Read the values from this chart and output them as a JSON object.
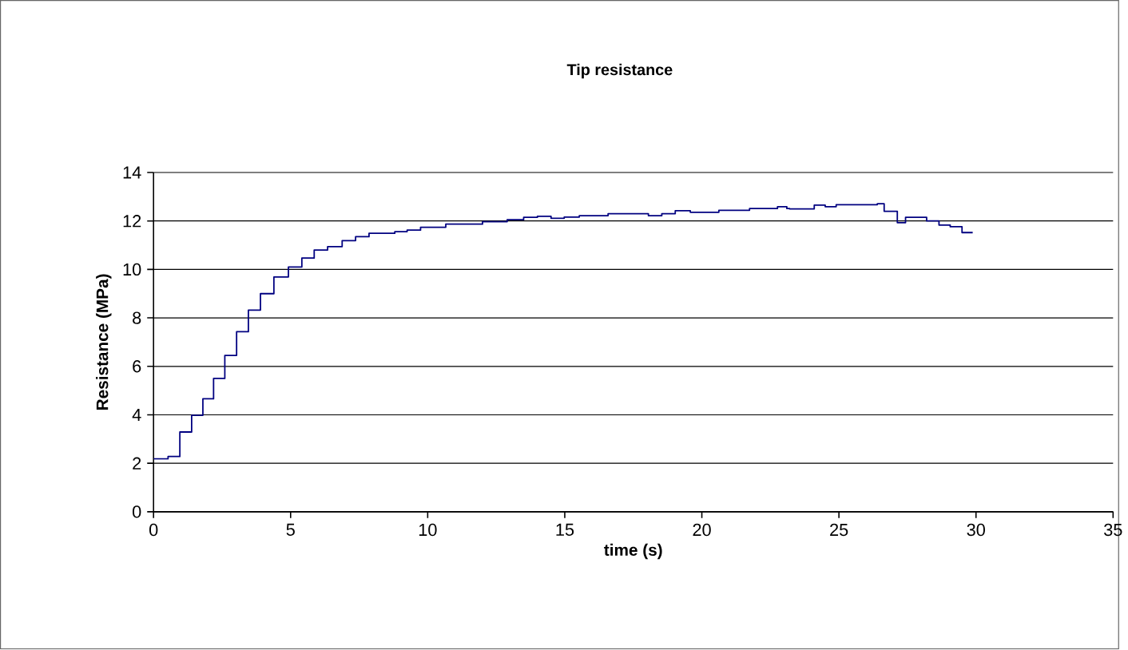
{
  "chart_data": {
    "type": "step",
    "title": "Tip resistance",
    "xlabel": "time (s)",
    "ylabel": "Resistance (MPa)",
    "x": [
      0,
      0.53,
      0.96,
      1.39,
      1.8,
      2.19,
      2.6,
      3.03,
      3.46,
      3.9,
      4.39,
      4.92,
      5.41,
      5.86,
      6.35,
      6.88,
      7.37,
      7.86,
      8.8,
      9.25,
      9.74,
      10.66,
      12.0,
      12.9,
      13.5,
      14.0,
      14.5,
      14.98,
      15.53,
      16.58,
      18.05,
      18.54,
      19.03,
      19.58,
      20.62,
      21.74,
      22.76,
      23.1,
      23.2,
      24.1,
      24.5,
      24.9,
      26.4,
      26.65,
      27.13,
      27.43,
      28.2,
      28.65,
      29.06,
      29.49,
      29.88
    ],
    "values": [
      2.18,
      2.28,
      3.29,
      3.98,
      4.66,
      5.5,
      6.45,
      7.43,
      8.32,
      9.0,
      9.69,
      10.1,
      10.47,
      10.8,
      10.94,
      11.19,
      11.35,
      11.49,
      11.56,
      11.62,
      11.74,
      11.87,
      11.97,
      12.05,
      12.15,
      12.19,
      12.11,
      12.16,
      12.22,
      12.3,
      12.22,
      12.3,
      12.42,
      12.36,
      12.44,
      12.51,
      12.59,
      12.51,
      12.5,
      12.65,
      12.59,
      12.67,
      12.71,
      12.4,
      11.93,
      12.15,
      12.0,
      11.83,
      11.76,
      11.52,
      11.52
    ],
    "color": "#000080",
    "xlim": [
      0,
      35
    ],
    "xticks": [
      0,
      5,
      10,
      15,
      20,
      25,
      30,
      35
    ],
    "ylim": [
      0,
      14
    ],
    "yticks": [
      0,
      2,
      4,
      6,
      8,
      10,
      12,
      14
    ],
    "grid": "y"
  }
}
